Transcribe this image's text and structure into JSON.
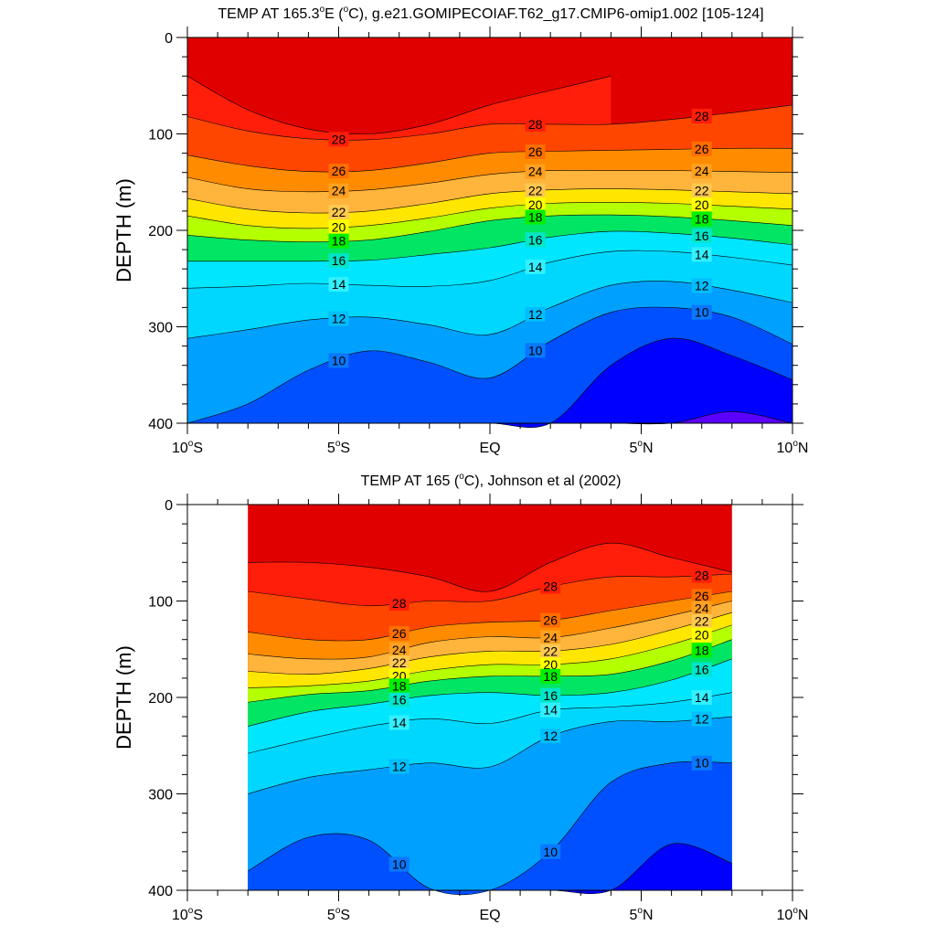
{
  "chart_data": [
    {
      "type": "contour",
      "title": "TEMP AT 165.3°E (°C), g.e21.GOMIPECOIAF.T62_g17.CMIP6-omip1.002 [105-124]",
      "title_parts": [
        "TEMP AT 165.3",
        "o",
        "E (",
        "o",
        "C), g.e21.GOMIPECOIAF.T62_g17.CMIP6-omip1.002 [105-124]"
      ],
      "xlabel": "",
      "ylabel": "DEPTH (m)",
      "xlim": [
        -10,
        10
      ],
      "ylim": [
        400,
        0
      ],
      "x_ticks": [
        -10,
        -5,
        0,
        5,
        10
      ],
      "y_ticks": [
        0,
        100,
        200,
        300,
        400
      ],
      "data_x_range": [
        -10,
        10
      ],
      "contour_interval": 1,
      "labeled_levels": [
        28,
        26,
        24,
        22,
        20,
        18,
        16,
        14,
        12,
        10
      ],
      "contour_depths": {
        "x": [
          -10,
          -8,
          -6,
          -4,
          -2,
          0,
          2,
          4,
          6,
          8,
          10
        ],
        "levels": [
          {
            "temp": 29,
            "depth": [
              40,
              75,
              95,
              100,
              90,
              70,
              55,
              40,
              null,
              null,
              null
            ]
          },
          {
            "temp": 28,
            "depth": [
              82,
              97,
              105,
              106,
              100,
              90,
              90,
              90,
              85,
              78,
              70
            ]
          },
          {
            "temp": 26,
            "depth": [
              122,
              133,
              139,
              138,
              130,
              120,
              118,
              117,
              116,
              115,
              115
            ]
          },
          {
            "temp": 24,
            "depth": [
              145,
              157,
              160,
              158,
              151,
              142,
              138,
              138,
              138,
              139,
              140
            ]
          },
          {
            "temp": 22,
            "depth": [
              167,
              178,
              182,
              180,
              172,
              162,
              158,
              157,
              158,
              160,
              162
            ]
          },
          {
            "temp": 20,
            "depth": [
              185,
              195,
              198,
              195,
              187,
              177,
              172,
              171,
              172,
              175,
              178
            ]
          },
          {
            "temp": 18,
            "depth": [
              205,
              210,
              212,
              210,
              201,
              190,
              185,
              184,
              186,
              190,
              195
            ]
          },
          {
            "temp": 16,
            "depth": [
              232,
              232,
              232,
              231,
              225,
              218,
              207,
              201,
              203,
              208,
              215
            ]
          },
          {
            "temp": 14,
            "depth": [
              260,
              258,
              255,
              257,
              258,
              252,
              233,
              222,
              222,
              228,
              236
            ]
          },
          {
            "temp": 12,
            "depth": [
              312,
              303,
              293,
              290,
              298,
              308,
              280,
              257,
              253,
              262,
              275
            ]
          },
          {
            "temp": 10,
            "depth": [
              400,
              380,
              345,
              325,
              337,
              353,
              315,
              285,
              280,
              290,
              318
            ]
          },
          {
            "temp": 9,
            "depth": [
              400,
              400,
              400,
              400,
              400,
              400,
              400,
              340,
              312,
              330,
              355
            ]
          },
          {
            "temp": 8,
            "depth": [
              400,
              400,
              400,
              400,
              400,
              400,
              400,
              400,
              400,
              388,
              400
            ]
          }
        ]
      }
    },
    {
      "type": "contour",
      "title": "TEMP AT 165 (°C), Johnson et al (2002)",
      "title_parts": [
        "TEMP AT 165 (",
        "o",
        "C), Johnson et al (2002)"
      ],
      "xlabel": "",
      "ylabel": "DEPTH (m)",
      "xlim": [
        -10,
        10
      ],
      "ylim": [
        400,
        0
      ],
      "x_ticks": [
        -10,
        -5,
        0,
        5,
        10
      ],
      "y_ticks": [
        0,
        100,
        200,
        300,
        400
      ],
      "data_x_range": [
        -8,
        8
      ],
      "contour_interval": 1,
      "labeled_levels": [
        28,
        26,
        24,
        22,
        20,
        18,
        16,
        14,
        12,
        10
      ],
      "contour_depths": {
        "x": [
          -8,
          -6,
          -4,
          -2,
          0,
          2,
          4,
          6,
          8
        ],
        "levels": [
          {
            "temp": 29,
            "depth": [
              60,
              60,
              65,
              75,
              90,
              60,
              40,
              55,
              70
            ]
          },
          {
            "temp": 28,
            "depth": [
              90,
              98,
              105,
              100,
              100,
              85,
              75,
              75,
              72
            ]
          },
          {
            "temp": 26,
            "depth": [
              132,
              140,
              140,
              127,
              122,
              120,
              110,
              100,
              90
            ]
          },
          {
            "temp": 24,
            "depth": [
              155,
              160,
              158,
              143,
              137,
              138,
              128,
              115,
              100
            ]
          },
          {
            "temp": 22,
            "depth": [
              173,
              176,
              170,
              158,
              152,
              152,
              145,
              130,
              112
            ]
          },
          {
            "temp": 20,
            "depth": [
              190,
              188,
              183,
              172,
              166,
              166,
              160,
              145,
              125
            ]
          },
          {
            "temp": 18,
            "depth": [
              205,
              197,
              193,
              183,
              178,
              178,
              176,
              162,
              140
            ]
          },
          {
            "temp": 16,
            "depth": [
              230,
              215,
              207,
              198,
              195,
              198,
              195,
              182,
              160
            ]
          },
          {
            "temp": 14,
            "depth": [
              258,
              243,
              230,
              222,
              227,
              213,
              210,
              205,
              195
            ]
          },
          {
            "temp": 12,
            "depth": [
              300,
              283,
              275,
              268,
              272,
              240,
              225,
              225,
              220
            ]
          },
          {
            "temp": 10,
            "depth": [
              380,
              345,
              348,
              398,
              400,
              360,
              288,
              268,
              268
            ]
          },
          {
            "temp": 9,
            "depth": [
              400,
              400,
              400,
              400,
              400,
              400,
              400,
              352,
              372
            ]
          }
        ]
      }
    }
  ],
  "x_tick_labels": [
    {
      "main": "10",
      "sup": "o",
      "tail": "S"
    },
    {
      "main": "5",
      "sup": "o",
      "tail": "S"
    },
    {
      "main": "EQ",
      "sup": "",
      "tail": ""
    },
    {
      "main": "5",
      "sup": "o",
      "tail": "N"
    },
    {
      "main": "10",
      "sup": "o",
      "tail": "N"
    }
  ],
  "color_map": {
    "29": "#E10000",
    "28": "#FF1E0A",
    "27": "#FF4600",
    "26": "#FF6E00",
    "25": "#FF8C00",
    "24": "#FFA020",
    "23": "#FFB43C",
    "22": "#FFC850",
    "21": "#FFE600",
    "20": "#FFFF00",
    "19": "#B4FF00",
    "18": "#00F000",
    "17": "#00E664",
    "16": "#00E6C8",
    "15": "#00E6FF",
    "14": "#32F0FF",
    "13": "#00D7FF",
    "12": "#00BEFF",
    "11": "#00A0FF",
    "10": "#0A78FF",
    "9": "#0050FF",
    "8": "#0000FF",
    "7": "#5A00FF"
  }
}
